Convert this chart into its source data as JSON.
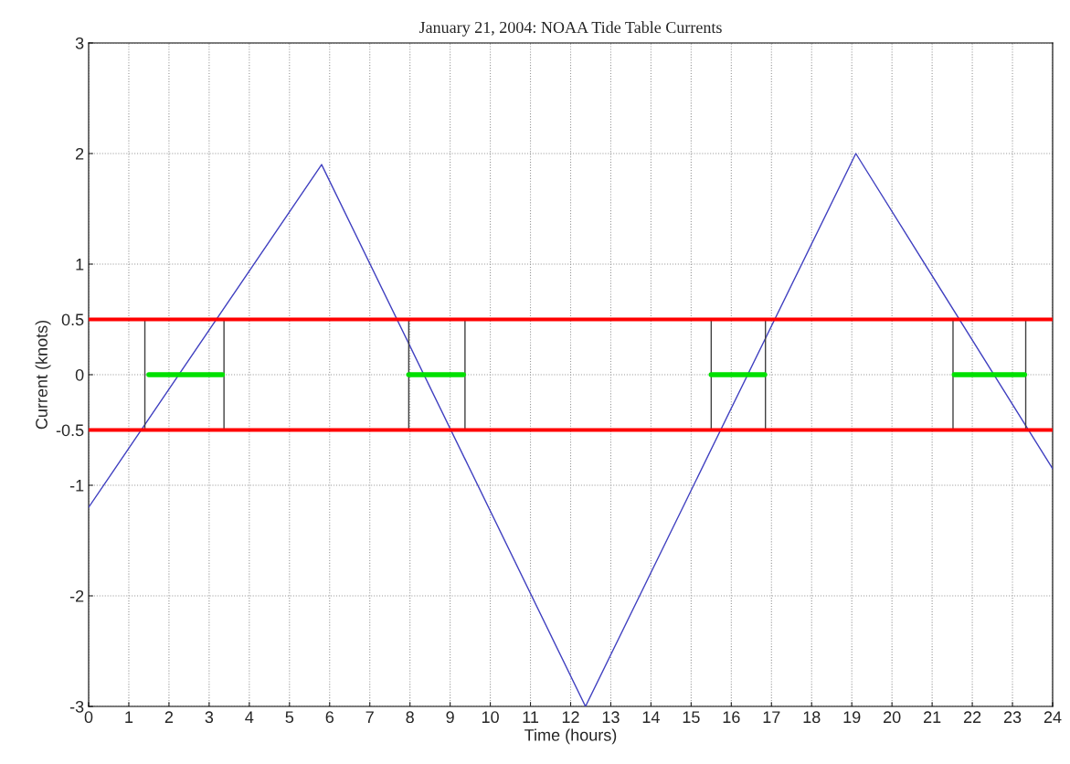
{
  "chart_data": {
    "type": "line",
    "title": "January 21, 2004: NOAA Tide Table Currents",
    "xlabel": "Time (hours)",
    "ylabel": "Current (knots)",
    "xlim": [
      0,
      24
    ],
    "ylim": [
      -3,
      3
    ],
    "xticks": [
      0,
      1,
      2,
      3,
      4,
      5,
      6,
      7,
      8,
      9,
      10,
      11,
      12,
      13,
      14,
      15,
      16,
      17,
      18,
      19,
      20,
      21,
      22,
      23,
      24
    ],
    "yticks": [
      -3,
      -2,
      -1,
      -0.5,
      0,
      0.5,
      1,
      2,
      3
    ],
    "grid": true,
    "series": [
      {
        "color": "#4040c0",
        "x": [
          0,
          5.8,
          12.37,
          19.1,
          24
        ],
        "values": [
          -1.2,
          1.9,
          -3,
          2,
          -0.85
        ]
      },
      {
        "color": "#404040",
        "x": [
          1.4,
          1.4
        ],
        "values": [
          -0.5,
          0.5
        ]
      },
      {
        "color": "#404040",
        "x": [
          3.37,
          3.37
        ],
        "values": [
          -0.5,
          0.5
        ]
      },
      {
        "color": "#404040",
        "x": [
          7.97,
          7.97
        ],
        "values": [
          -0.5,
          0.5
        ]
      },
      {
        "color": "#404040",
        "x": [
          9.37,
          9.37
        ],
        "values": [
          -0.5,
          0.5
        ]
      },
      {
        "color": "#404040",
        "x": [
          15.5,
          15.5
        ],
        "values": [
          -0.5,
          0.5
        ]
      },
      {
        "color": "#404040",
        "x": [
          16.85,
          16.85
        ],
        "values": [
          -0.5,
          0.5
        ]
      },
      {
        "color": "#404040",
        "x": [
          21.52,
          21.52
        ],
        "values": [
          -0.5,
          0.5
        ]
      },
      {
        "color": "#404040",
        "x": [
          23.33,
          23.33
        ],
        "values": [
          -0.5,
          0.5
        ]
      },
      {
        "color": "#00e000",
        "x": [
          1.5,
          3.33
        ],
        "values": [
          0,
          0
        ]
      },
      {
        "color": "#00e000",
        "x": [
          7.97,
          9.33
        ],
        "values": [
          0,
          0
        ]
      },
      {
        "color": "#00e000",
        "x": [
          15.5,
          16.83
        ],
        "values": [
          0,
          0
        ]
      },
      {
        "color": "#00e000",
        "x": [
          21.55,
          23.3
        ],
        "values": [
          0,
          0
        ]
      },
      {
        "color": "#ff0000",
        "x": [
          0,
          24
        ],
        "values": [
          0.5,
          0.5
        ]
      },
      {
        "color": "#ff0000",
        "x": [
          0,
          24
        ],
        "values": [
          -0.5,
          -0.5
        ]
      }
    ]
  }
}
